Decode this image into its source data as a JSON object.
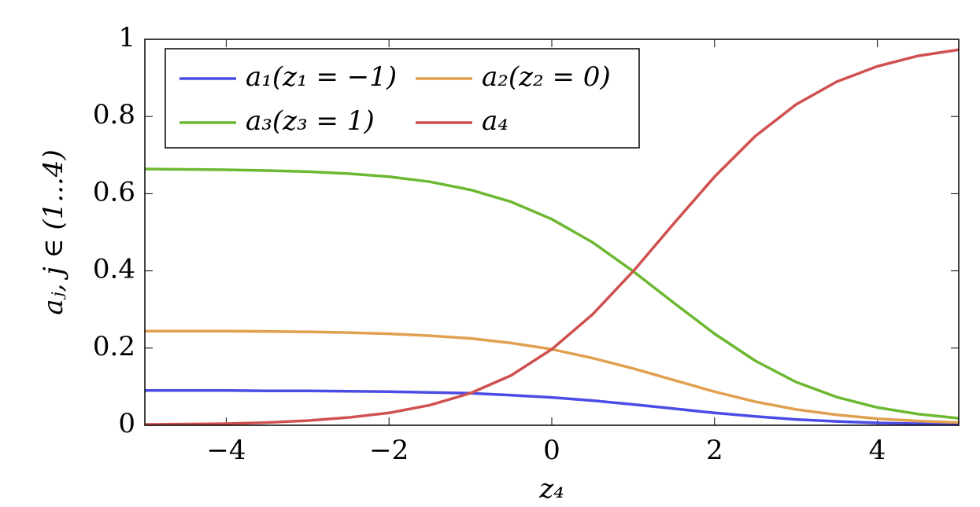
{
  "chart_data": {
    "type": "line",
    "x": [
      -5,
      -4.5,
      -4,
      -3.5,
      -3,
      -2.5,
      -2,
      -1.5,
      -1,
      -0.5,
      0,
      0.5,
      1,
      1.5,
      2,
      2.5,
      3,
      3.5,
      4,
      4.5,
      5
    ],
    "series": [
      {
        "name": "a₁(z₁ = −1)",
        "color": "#4b4be6",
        "values": [
          0.09,
          0.09,
          0.09,
          0.089,
          0.089,
          0.088,
          0.087,
          0.085,
          0.083,
          0.078,
          0.072,
          0.064,
          0.054,
          0.043,
          0.032,
          0.023,
          0.015,
          0.01,
          0.006,
          0.004,
          0.002
        ]
      },
      {
        "name": "a₂(z₂ = 0)",
        "color": "#e0a050",
        "values": [
          0.244,
          0.244,
          0.244,
          0.243,
          0.242,
          0.24,
          0.237,
          0.232,
          0.225,
          0.213,
          0.197,
          0.174,
          0.147,
          0.117,
          0.087,
          0.061,
          0.041,
          0.027,
          0.017,
          0.011,
          0.007
        ]
      },
      {
        "name": "a₃(z₃ = 1)",
        "color": "#6db832",
        "values": [
          0.664,
          0.663,
          0.662,
          0.66,
          0.657,
          0.652,
          0.644,
          0.631,
          0.61,
          0.579,
          0.534,
          0.474,
          0.399,
          0.317,
          0.237,
          0.167,
          0.112,
          0.073,
          0.046,
          0.029,
          0.018
        ]
      },
      {
        "name": "a₄",
        "color": "#d05050",
        "values": [
          0.002,
          0.003,
          0.004,
          0.007,
          0.012,
          0.02,
          0.032,
          0.052,
          0.083,
          0.129,
          0.197,
          0.287,
          0.399,
          0.523,
          0.644,
          0.749,
          0.831,
          0.89,
          0.93,
          0.957,
          0.973
        ]
      }
    ],
    "xlabel": "z₄",
    "ylabel": "aⱼ, j ∈ (1...4)",
    "xlim": [
      -5,
      5
    ],
    "xticks": [
      {
        "value": -4,
        "label": "−4"
      },
      {
        "value": -2,
        "label": "−2"
      },
      0,
      2,
      4
    ],
    "ylim": [
      0,
      1
    ],
    "yticks": [
      0,
      0.2,
      0.4,
      0.6,
      0.8,
      1
    ],
    "legend": "upper left",
    "grid": false
  }
}
